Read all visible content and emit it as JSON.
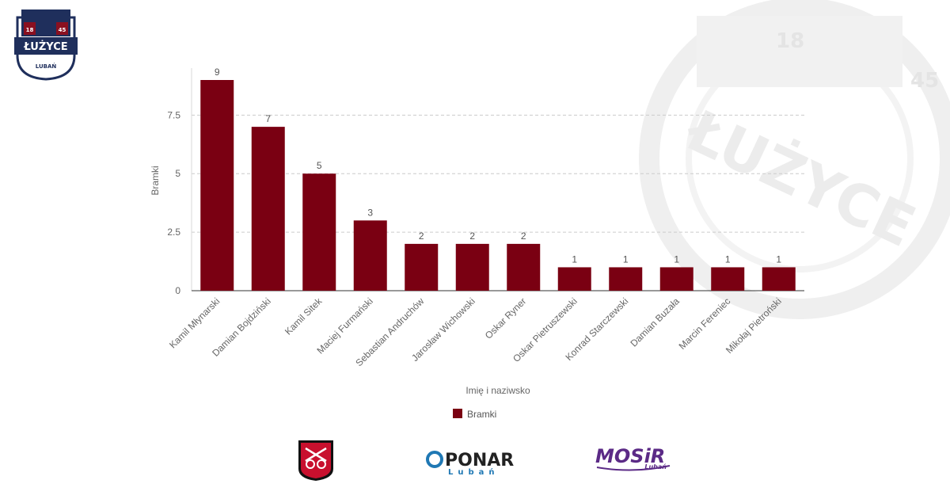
{
  "club_logo": {
    "name": "ŁUŻYCE",
    "city": "LUBAŃ",
    "year_left": "18",
    "year_right": "45"
  },
  "sponsors": [
    {
      "name": "PONAR",
      "sub": "Lubań"
    },
    {
      "name": "MOSiR",
      "sub": "Lubań"
    }
  ],
  "colors": {
    "bar": "#7a0012",
    "grid": "#cccccc",
    "watermark": "#f0f0f0",
    "navy": "#1f2f5c",
    "mosir": "#5b2a86",
    "ponar": "#1f78b4"
  },
  "chart_data": {
    "type": "bar",
    "xlabel": "Imię i naziwsko",
    "ylabel": "Bramki",
    "ylim": [
      0,
      9
    ],
    "yticks": [
      0,
      2.5,
      5,
      7.5
    ],
    "ytick_labels": [
      "0",
      "2.5",
      "5",
      "7.5"
    ],
    "grid": true,
    "legend_position": "bottom-center",
    "categories": [
      "Kamil Młynarski",
      "Damian Bojdziński",
      "Kamil Sitek",
      "Maciej Furmański",
      "Sebastian Andruchów",
      "Jarosław Wichowski",
      "Oskar Ryner",
      "Oskar Pietruszewski",
      "Konrad Starczewski",
      "Damian Buzała",
      "Marcin Fereniec",
      "Mikołaj Pietroński"
    ],
    "series": [
      {
        "name": "Bramki",
        "values": [
          9,
          7,
          5,
          3,
          2,
          2,
          2,
          1,
          1,
          1,
          1,
          1
        ]
      }
    ]
  }
}
